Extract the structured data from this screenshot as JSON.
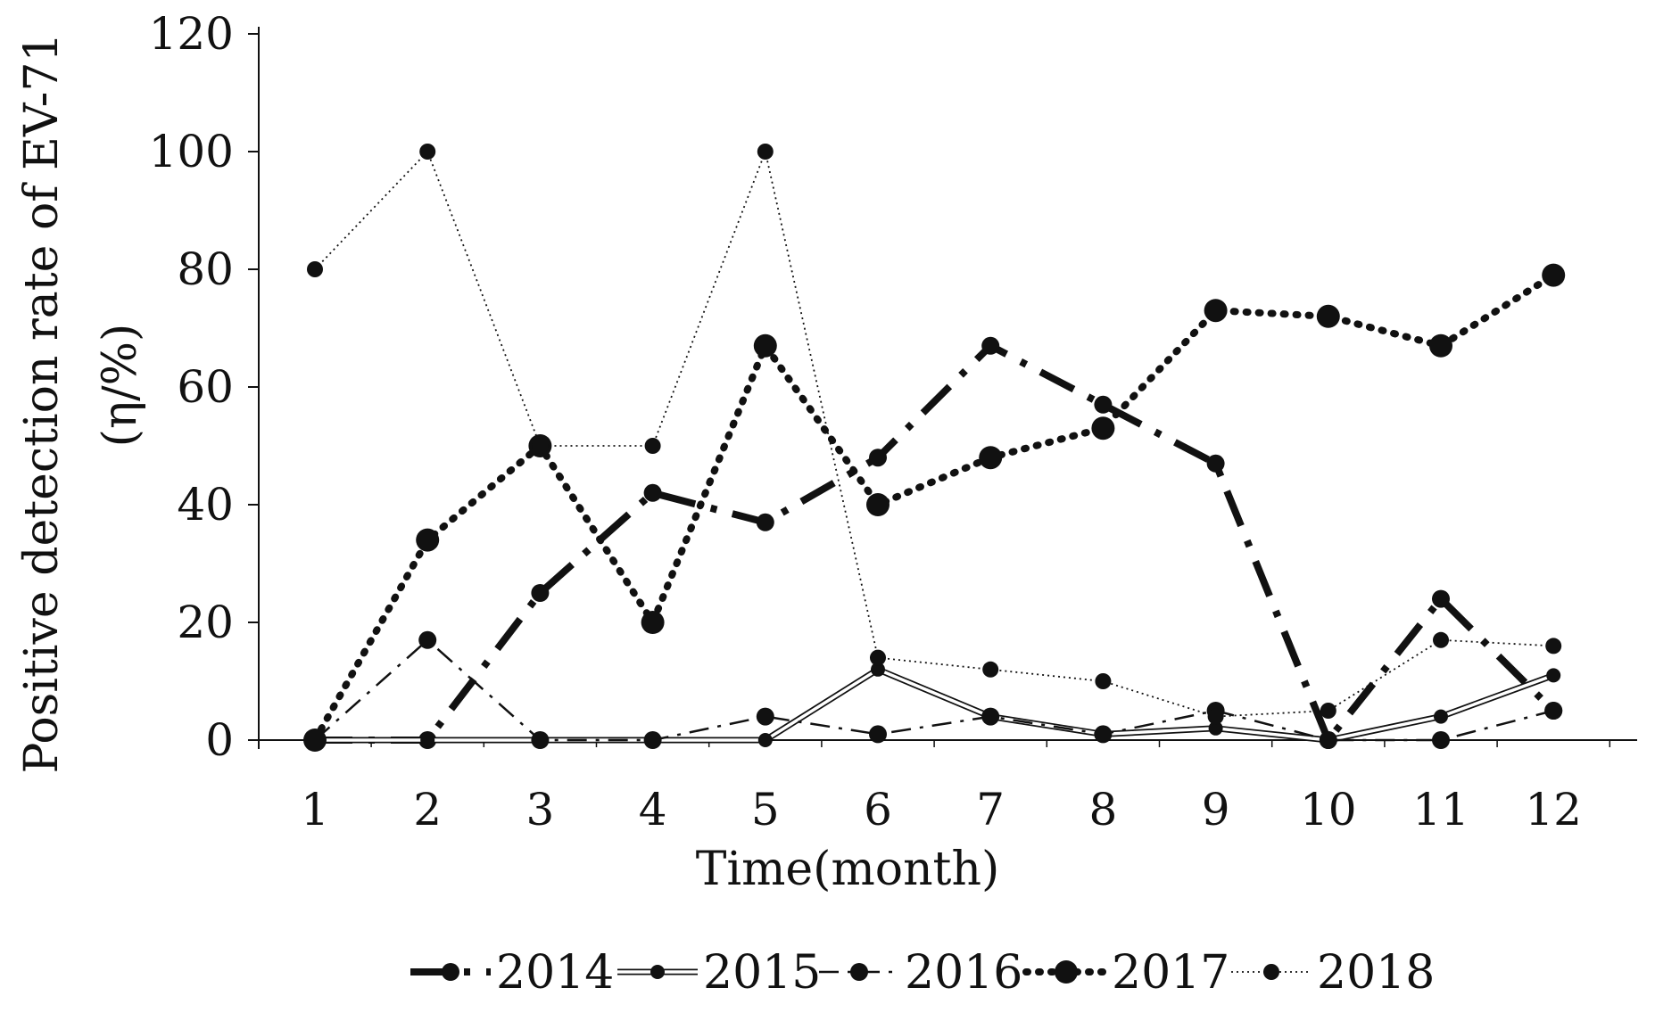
{
  "chart_data": {
    "type": "line",
    "title": "",
    "xlabel": "Time(month)",
    "ylabel": "Positive detection rate of EV-71",
    "ylabel_unit": "(η/%)",
    "x": [
      1,
      2,
      3,
      4,
      5,
      6,
      7,
      8,
      9,
      10,
      11,
      12
    ],
    "x_tick_labels": [
      "1",
      "2",
      "3",
      "4",
      "5",
      "6",
      "7",
      "8",
      "9",
      "10",
      "11",
      "12"
    ],
    "y_tick_labels": [
      "0",
      "20",
      "40",
      "60",
      "80",
      "100",
      "120"
    ],
    "ylim": [
      0,
      120
    ],
    "grid": false,
    "legend_position": "bottom",
    "series": [
      {
        "name": "2014",
        "values": [
          0,
          0,
          25,
          42,
          37,
          48,
          67,
          57,
          47,
          0,
          24,
          5
        ],
        "color": "#111111"
      },
      {
        "name": "2015",
        "values": [
          0,
          0,
          0,
          0,
          0,
          12,
          4,
          1,
          2,
          0,
          4,
          11
        ],
        "color": "#111111"
      },
      {
        "name": "2016",
        "values": [
          0,
          17,
          0,
          0,
          4,
          1,
          4,
          1,
          5,
          0,
          0,
          5
        ],
        "color": "#111111"
      },
      {
        "name": "2017",
        "values": [
          0,
          34,
          50,
          20,
          67,
          40,
          48,
          53,
          73,
          72,
          67,
          79
        ],
        "color": "#111111"
      },
      {
        "name": "2018",
        "values": [
          80,
          100,
          50,
          50,
          100,
          14,
          12,
          10,
          4,
          5,
          17,
          16
        ],
        "color": "#111111"
      }
    ]
  }
}
